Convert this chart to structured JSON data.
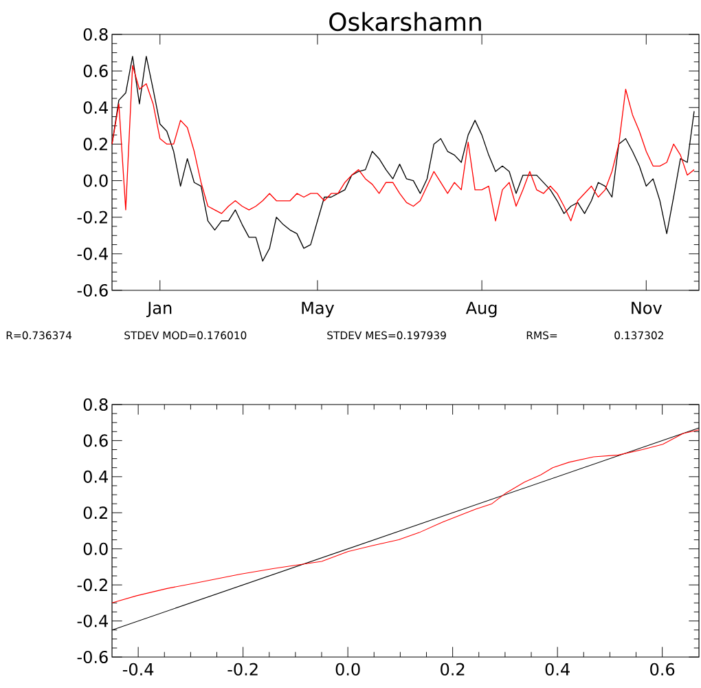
{
  "chart_data": [
    {
      "type": "line",
      "title": "Oskarshamn",
      "categories": [
        null,
        null,
        null,
        null,
        null,
        null,
        null,
        "Jan",
        null,
        null,
        null,
        null,
        null,
        null,
        null,
        null,
        null,
        null,
        null,
        null,
        null,
        null,
        null,
        null,
        null,
        null,
        null,
        null,
        null,
        null,
        "May",
        null,
        null,
        null,
        null,
        null,
        null,
        null,
        null,
        null,
        null,
        null,
        null,
        null,
        null,
        null,
        null,
        null,
        null,
        null,
        null,
        null,
        null,
        null,
        "Aug",
        null,
        null,
        null,
        null,
        null,
        null,
        null,
        null,
        null,
        null,
        null,
        null,
        null,
        null,
        null,
        null,
        null,
        null,
        null,
        null,
        null,
        null,
        null,
        "Nov",
        null,
        null,
        null,
        null,
        null,
        null,
        null
      ],
      "ylim": [
        -0.6,
        0.8
      ],
      "yticks": [
        -0.6,
        -0.4,
        -0.2,
        {
          "value": 0,
          "label": "0.0"
        },
        0.2,
        0.4,
        0.6,
        0.8
      ],
      "annotations": [
        "R=0.736374",
        "STDEV MOD=0.176010",
        "STDEV MES=0.197939",
        "RMS=",
        "0.137302"
      ],
      "series": [
        {
          "color": "#000000",
          "values": [
            0.2,
            0.44,
            0.48,
            0.68,
            0.42,
            0.68,
            0.5,
            0.31,
            0.27,
            0.16,
            -0.03,
            0.12,
            -0.01,
            -0.03,
            -0.22,
            -0.27,
            -0.22,
            -0.22,
            -0.16,
            -0.24,
            -0.31,
            -0.31,
            -0.44,
            -0.37,
            -0.2,
            -0.24,
            -0.27,
            -0.29,
            -0.37,
            -0.35,
            -0.22,
            -0.09,
            -0.09,
            -0.07,
            -0.05,
            0.03,
            0.05,
            0.06,
            0.16,
            0.12,
            0.06,
            0.01,
            0.09,
            0.01,
            0,
            -0.07,
            0.01,
            0.2,
            0.23,
            0.16,
            0.14,
            0.1,
            0.25,
            0.33,
            0.25,
            0.14,
            0.05,
            0.08,
            0.05,
            -0.07,
            0.03,
            0.03,
            0.03,
            -0.01,
            -0.05,
            -0.11,
            -0.18,
            -0.14,
            -0.12,
            -0.18,
            -0.11,
            -0.01,
            -0.03,
            -0.09,
            0.2,
            0.23,
            0.16,
            0.08,
            -0.03,
            0.01,
            -0.11,
            -0.29,
            -0.09,
            0.12,
            0.1,
            0.38
          ]
        },
        {
          "color": "#ff0000",
          "values": [
            0.2,
            0.42,
            -0.16,
            0.63,
            0.5,
            0.53,
            0.42,
            0.23,
            0.2,
            0.2,
            0.33,
            0.29,
            0.16,
            -0.01,
            -0.14,
            -0.16,
            -0.18,
            -0.14,
            -0.11,
            -0.14,
            -0.16,
            -0.14,
            -0.11,
            -0.07,
            -0.11,
            -0.11,
            -0.11,
            -0.07,
            -0.09,
            -0.07,
            -0.07,
            -0.11,
            -0.07,
            -0.07,
            -0.01,
            0.03,
            0.06,
            0.01,
            -0.02,
            -0.07,
            -0.01,
            -0.01,
            -0.07,
            -0.12,
            -0.14,
            -0.11,
            -0.03,
            0.05,
            -0.01,
            -0.07,
            -0.01,
            -0.05,
            0.21,
            -0.05,
            -0.05,
            -0.03,
            -0.22,
            -0.05,
            -0.01,
            -0.14,
            -0.05,
            0.05,
            -0.05,
            -0.07,
            -0.03,
            -0.07,
            -0.14,
            -0.22,
            -0.11,
            -0.07,
            -0.03,
            -0.09,
            -0.05,
            0.05,
            0.2,
            0.5,
            0.36,
            0.27,
            0.16,
            0.08,
            0.08,
            0.1,
            0.2,
            0.14,
            0.03,
            0.06
          ]
        }
      ]
    },
    {
      "type": "line",
      "xlim": [
        -0.45,
        0.67
      ],
      "xticks": [
        -0.4,
        -0.2,
        {
          "value": 0,
          "label": "0.0"
        },
        0.2,
        0.4,
        0.6
      ],
      "ylim": [
        -0.6,
        0.8
      ],
      "yticks": [
        -0.6,
        -0.4,
        -0.2,
        {
          "value": 0,
          "label": "0.0"
        },
        0.2,
        0.4,
        0.6,
        0.8
      ],
      "series": [
        {
          "color": "#000000",
          "x": [
            -0.45,
            0.67
          ],
          "values": [
            -0.45,
            0.67
          ]
        },
        {
          "color": "#ff0000",
          "x": [
            -0.45,
            -0.403,
            -0.345,
            -0.291,
            -0.205,
            -0.143,
            -0.097,
            -0.05,
            0,
            0.05,
            0.097,
            0.136,
            0.182,
            0.244,
            0.275,
            0.302,
            0.337,
            0.368,
            0.391,
            0.422,
            0.469,
            0.516,
            0.562,
            0.601,
            0.64,
            0.67
          ],
          "values": [
            -0.3,
            -0.26,
            -0.22,
            -0.19,
            -0.14,
            -0.11,
            -0.09,
            -0.07,
            -0.015,
            0.02,
            0.05,
            0.09,
            0.15,
            0.22,
            0.25,
            0.31,
            0.37,
            0.41,
            0.45,
            0.48,
            0.51,
            0.52,
            0.55,
            0.58,
            0.64,
            0.66
          ]
        }
      ]
    }
  ]
}
